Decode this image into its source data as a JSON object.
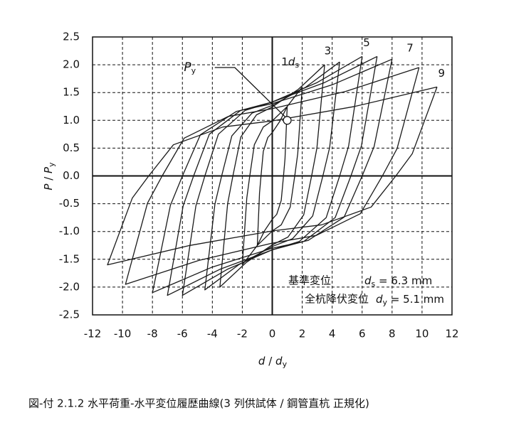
{
  "chart_data": {
    "type": "hysteresis",
    "xlabel": {
      "symbol": "d",
      "text": " / ",
      "symbol2": "d",
      "sub": "y"
    },
    "ylabel": {
      "symbol": "P",
      "text": " / ",
      "symbol2": "P",
      "sub": "y"
    },
    "caption": "図-付  2.1.2  水平荷重-水平変位履歴曲線(3 列供試体 / 鋼管直杭  正規化)",
    "xlim": [
      -12,
      12
    ],
    "ylim": [
      -2.5,
      2.5
    ],
    "xticks": [
      -12,
      -10,
      -8,
      -6,
      -4,
      -2,
      0,
      2,
      4,
      6,
      8,
      10,
      12
    ],
    "yticks": [
      2.5,
      {
        "value": 2,
        "label": "2.0"
      },
      1.5,
      {
        "value": 1,
        "label": "1.0"
      },
      0.5,
      {
        "value": 0,
        "label": "0.0"
      },
      -0.5,
      {
        "value": -1,
        "label": "-1.0"
      },
      -1.5,
      {
        "value": -2,
        "label": "-2.0"
      },
      -2.5
    ],
    "grid": true,
    "color": "#1a1a1a",
    "series": [
      {
        "x": [
          1,
          0.85,
          0.75,
          0.6,
          0.3,
          0,
          -0.5,
          -1,
          -0.85,
          -0.75,
          -0.6,
          -0.3,
          0,
          0.5,
          1
        ],
        "y": [
          1.25,
          0.31,
          0,
          -0.44,
          -0.69,
          -0.78,
          -0.98,
          -1.25,
          -0.31,
          0,
          0.44,
          0.69,
          0.78,
          0.98,
          1.25
        ]
      },
      {
        "x": [
          2,
          1.7,
          1.5,
          1.2,
          0.6,
          0,
          -1,
          -2,
          -1.7,
          -1.5,
          -1.2,
          -0.6,
          0,
          1,
          2
        ],
        "y": [
          1.6,
          0.4,
          0,
          -0.56,
          -0.88,
          -0.99,
          -1.25,
          -1.6,
          -0.4,
          0,
          0.56,
          0.88,
          0.99,
          1.25,
          1.6
        ]
      },
      {
        "x": [
          3.5,
          2.98,
          2.63,
          2.1,
          1.05,
          0,
          -1.75,
          -3.5,
          -2.98,
          -2.63,
          -2.1,
          -1.05,
          0,
          1.75,
          3.5
        ],
        "y": [
          2,
          0.5,
          0,
          -0.7,
          -1.1,
          -1.24,
          -1.56,
          -2,
          -0.5,
          0,
          0.7,
          1.1,
          1.24,
          1.56,
          2
        ]
      },
      {
        "x": [
          4.5,
          3.83,
          3.38,
          2.7,
          1.35,
          0,
          -2.25,
          -4.5,
          -3.83,
          -3.38,
          -2.7,
          -1.35,
          0,
          2.25,
          4.5
        ],
        "y": [
          2.05,
          0.51,
          0,
          -0.72,
          -1.13,
          -1.27,
          -1.6,
          -2.05,
          -0.51,
          0,
          0.72,
          1.13,
          1.27,
          1.6,
          2.05
        ]
      },
      {
        "x": [
          6,
          5.1,
          4.5,
          3.6,
          1.8,
          0,
          -3,
          -6,
          -5.1,
          -4.5,
          -3.6,
          -1.8,
          0,
          3,
          6
        ],
        "y": [
          2.15,
          0.54,
          0,
          -0.75,
          -1.18,
          -1.33,
          -1.68,
          -2.15,
          -0.54,
          0,
          0.75,
          1.18,
          1.33,
          1.68,
          2.15
        ]
      },
      {
        "x": [
          7,
          5.95,
          5.25,
          4.2,
          2.1,
          0,
          -3.5,
          -7,
          -5.95,
          -5.25,
          -4.2,
          -2.1,
          0,
          3.5,
          7
        ],
        "y": [
          2.15,
          0.54,
          0,
          -0.75,
          -1.18,
          -1.33,
          -1.68,
          -2.15,
          -0.54,
          0,
          0.75,
          1.18,
          1.33,
          1.68,
          2.15
        ]
      },
      {
        "x": [
          8,
          6.8,
          6,
          4.8,
          2.4,
          0,
          -4,
          -8,
          -6.8,
          -6,
          -4.8,
          -2.4,
          0,
          4,
          8
        ],
        "y": [
          2.1,
          0.53,
          0,
          -0.74,
          -1.16,
          -1.3,
          -1.64,
          -2.1,
          -0.53,
          0,
          0.74,
          1.16,
          1.3,
          1.64,
          2.1
        ]
      },
      {
        "x": [
          9.8,
          8.33,
          7.35,
          5.88,
          2.94,
          0,
          -4.9,
          -9.8,
          -8.33,
          -7.35,
          -5.88,
          -2.94,
          0,
          4.9,
          9.8
        ],
        "y": [
          1.95,
          0.49,
          0,
          -0.68,
          -1.07,
          -1.21,
          -1.52,
          -1.95,
          -0.49,
          0,
          0.68,
          1.07,
          1.21,
          1.52,
          1.95
        ]
      },
      {
        "x": [
          11,
          9.35,
          8.25,
          6.6,
          3.3,
          0,
          -5.5,
          -11,
          -9.35,
          -8.25,
          -6.6,
          -3.3,
          0,
          5.5,
          11
        ],
        "y": [
          1.6,
          0.4,
          0,
          -0.56,
          -0.88,
          -0.99,
          -1.25,
          -1.6,
          -0.4,
          0,
          0.56,
          0.88,
          0.99,
          1.25,
          1.6
        ]
      }
    ],
    "py_point": {
      "x": 1,
      "y": 1,
      "symbol": "P",
      "sub": "y",
      "label_x": -5.5,
      "label_y": 1.95
    },
    "annotations": [
      {
        "text": "1",
        "symbol": "d",
        "sub": "s",
        "x": 1.2,
        "y": 2.05
      },
      {
        "text": "3",
        "x": 3.7,
        "y": 2.25
      },
      {
        "text": "5",
        "x": 6.3,
        "y": 2.4
      },
      {
        "text": "7",
        "x": 9.2,
        "y": 2.3
      },
      {
        "text": "9",
        "x": 11.3,
        "y": 1.85
      }
    ],
    "info": [
      {
        "label": "基準変位",
        "symbol": "d",
        "sub": "s",
        "value": " =  6.3 mm"
      },
      {
        "label": "全杭降伏変位",
        "symbol": "d",
        "sub": "y",
        "value": " = 5.1 mm"
      }
    ]
  }
}
